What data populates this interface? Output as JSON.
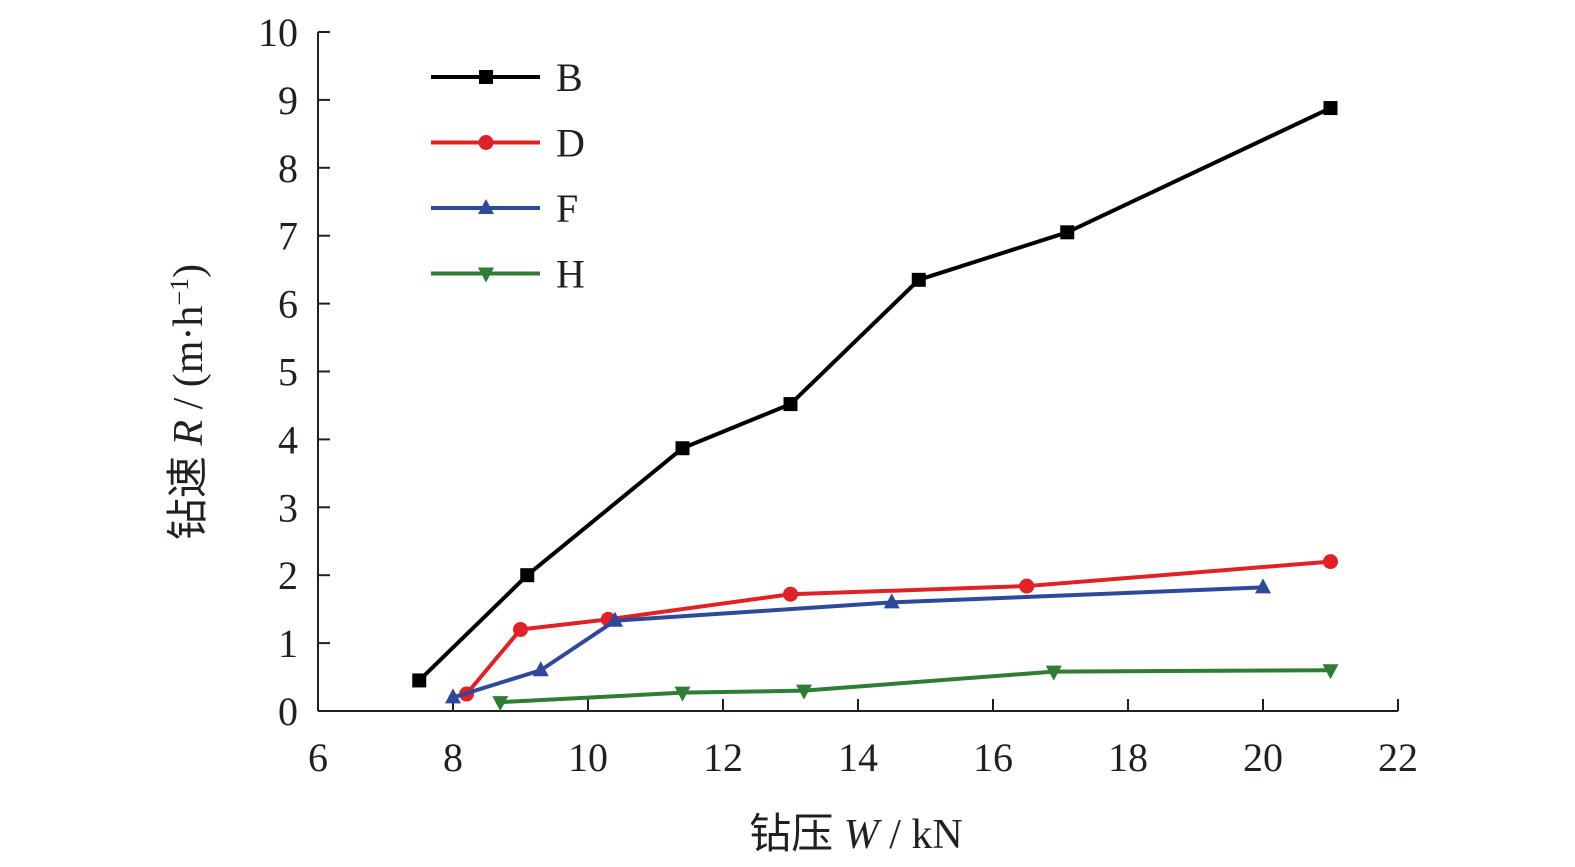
{
  "chart_data": {
    "type": "line",
    "xlabel": "钻压 W / kN",
    "xlabel_parts": {
      "prefix": "钻压 ",
      "symbol": "W",
      "unit": " / kN"
    },
    "ylabel": "钻速 R / (m·h⁻¹)",
    "ylabel_parts": {
      "prefix": "钻速 ",
      "symbol": "R",
      "unit": " / (m·h",
      "exponent": "−1",
      "close": ")"
    },
    "xlim": [
      6,
      22
    ],
    "ylim": [
      0,
      10
    ],
    "x_ticks": [
      6,
      8,
      10,
      12,
      14,
      16,
      18,
      20,
      22
    ],
    "y_ticks": [
      0,
      1,
      2,
      3,
      4,
      5,
      6,
      7,
      8,
      9,
      10
    ],
    "grid": false,
    "legend_position": "top-left",
    "series": [
      {
        "name": "B",
        "color": "#000000",
        "marker": "square",
        "x": [
          7.5,
          9.1,
          11.4,
          13.0,
          14.9,
          17.1,
          21.0
        ],
        "y": [
          0.45,
          2.0,
          3.87,
          4.52,
          6.35,
          7.05,
          8.88
        ]
      },
      {
        "name": "D",
        "color": "#e02126",
        "marker": "circle",
        "x": [
          8.2,
          9.0,
          10.3,
          13.0,
          16.5,
          21.0
        ],
        "y": [
          0.25,
          1.2,
          1.35,
          1.72,
          1.84,
          2.2
        ]
      },
      {
        "name": "F",
        "color": "#2e4999",
        "marker": "triangle-up",
        "x": [
          8.0,
          9.3,
          10.4,
          14.5,
          20.0
        ],
        "y": [
          0.2,
          0.6,
          1.33,
          1.6,
          1.82
        ]
      },
      {
        "name": "H",
        "color": "#2f7d32",
        "marker": "triangle-down",
        "x": [
          8.7,
          11.4,
          13.2,
          16.9,
          21.0
        ],
        "y": [
          0.13,
          0.27,
          0.3,
          0.58,
          0.6
        ]
      }
    ]
  }
}
